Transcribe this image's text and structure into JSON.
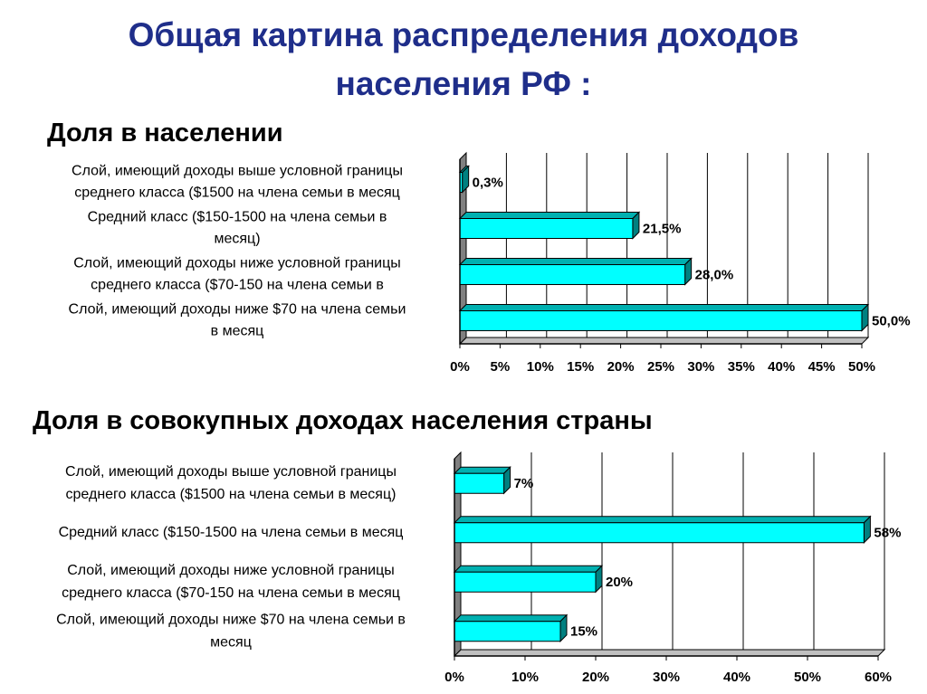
{
  "title": {
    "line1": "Общая картина распределения доходов",
    "line2": "населения РФ :"
  },
  "chart1": {
    "heading": "Доля в населении",
    "chart_data": {
      "type": "bar",
      "orientation": "horizontal",
      "categories": [
        [
          "Слой, имеющий доходы выше условной границы",
          "среднего класса ($1500 на члена семьи в месяц"
        ],
        [
          "Средний класс ($150-1500 на члена семьи в",
          "месяц)"
        ],
        [
          "Слой, имеющий доходы ниже условной границы",
          "среднего класса ($70-150 на члена семьи в"
        ],
        [
          "Слой, имеющий доходы ниже $70  на члена семьи",
          "в месяц"
        ]
      ],
      "values": [
        0.3,
        21.5,
        28.0,
        50.0
      ],
      "value_labels": [
        "0,3%",
        "21,5%",
        "28,0%",
        "50,0%"
      ],
      "x_ticks": [
        "0%",
        "5%",
        "10%",
        "15%",
        "20%",
        "25%",
        "30%",
        "35%",
        "40%",
        "45%",
        "50%"
      ],
      "xlim": [
        0,
        50
      ],
      "grid": true,
      "bar_color": "#00ffff"
    }
  },
  "chart2": {
    "heading": "Доля в совокупных доходах населения страны",
    "chart_data": {
      "type": "bar",
      "orientation": "horizontal",
      "categories": [
        [
          "Слой, имеющий доходы выше условной границы",
          "среднего класса ($1500 на члена семьи в месяц)"
        ],
        [
          "Средний класс ($150-1500 на члена семьи в месяц"
        ],
        [
          "Слой, имеющий доходы ниже условной границы",
          "среднего класса ($70-150 на члена семьи в месяц"
        ],
        [
          "Слой, имеющий доходы ниже $70  на члена семьи в",
          "месяц"
        ]
      ],
      "values": [
        7,
        58,
        20,
        15
      ],
      "value_labels": [
        "7%",
        "58%",
        "20%",
        "15%"
      ],
      "x_ticks": [
        "0%",
        "10%",
        "20%",
        "30%",
        "40%",
        "50%",
        "60%"
      ],
      "xlim": [
        0,
        60
      ],
      "grid": true,
      "bar_color": "#00ffff"
    }
  }
}
